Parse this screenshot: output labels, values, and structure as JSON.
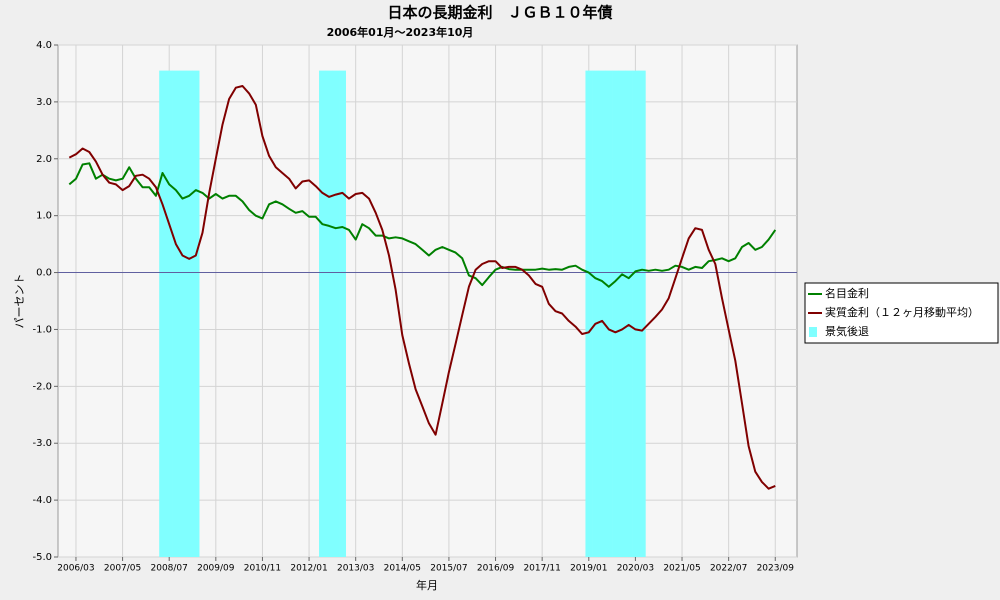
{
  "chart_data": {
    "type": "line",
    "title": "日本の長期金利　ＪＧＢ１０年債",
    "subtitle": "2006年01月～2023年10月",
    "x_label": "年月",
    "y_label": "パーセント",
    "categories": [
      null,
      "2006/03",
      null,
      null,
      null,
      null,
      null,
      null,
      "2007/05",
      null,
      null,
      null,
      null,
      null,
      null,
      "2008/07",
      null,
      null,
      null,
      null,
      null,
      null,
      "2009/09",
      null,
      null,
      null,
      null,
      null,
      null,
      "2010/11",
      null,
      null,
      null,
      null,
      null,
      null,
      "2012/01",
      null,
      null,
      null,
      null,
      null,
      null,
      "2013/03",
      null,
      null,
      null,
      null,
      null,
      null,
      "2014/05",
      null,
      null,
      null,
      null,
      null,
      null,
      "2015/07",
      null,
      null,
      null,
      null,
      null,
      null,
      "2016/09",
      null,
      null,
      null,
      null,
      null,
      null,
      "2017/11",
      null,
      null,
      null,
      null,
      null,
      null,
      "2019/01",
      null,
      null,
      null,
      null,
      null,
      null,
      "2020/03",
      null,
      null,
      null,
      null,
      null,
      null,
      "2021/05",
      null,
      null,
      null,
      null,
      null,
      null,
      "2022/07",
      null,
      null,
      null,
      null,
      null,
      null,
      "2023/09"
    ],
    "series": [
      {
        "name": "名目金利",
        "color": "#008000",
        "kind": "line",
        "values": [
          1.55,
          1.65,
          1.9,
          1.92,
          1.65,
          1.72,
          1.65,
          1.62,
          1.65,
          1.85,
          1.65,
          1.5,
          1.5,
          1.35,
          1.75,
          1.55,
          1.45,
          1.3,
          1.35,
          1.45,
          1.4,
          1.3,
          1.38,
          1.3,
          1.35,
          1.35,
          1.25,
          1.1,
          1.0,
          0.95,
          1.2,
          1.25,
          1.2,
          1.12,
          1.05,
          1.08,
          0.98,
          0.98,
          0.85,
          0.82,
          0.78,
          0.8,
          0.75,
          0.58,
          0.85,
          0.78,
          0.65,
          0.65,
          0.6,
          0.62,
          0.6,
          0.55,
          0.5,
          0.4,
          0.3,
          0.4,
          0.45,
          0.4,
          0.35,
          0.25,
          -0.05,
          -0.1,
          -0.22,
          -0.08,
          0.05,
          0.1,
          0.06,
          0.05,
          0.05,
          0.05,
          0.05,
          0.07,
          0.05,
          0.06,
          0.05,
          0.1,
          0.12,
          0.05,
          0.0,
          -0.1,
          -0.15,
          -0.25,
          -0.15,
          -0.03,
          -0.1,
          0.02,
          0.05,
          0.03,
          0.05,
          0.03,
          0.05,
          0.12,
          0.1,
          0.05,
          0.1,
          0.08,
          0.2,
          0.22,
          0.25,
          0.2,
          0.25,
          0.45,
          0.52,
          0.4,
          0.45,
          0.58,
          0.75
        ]
      },
      {
        "name": "実質金利（１２ヶ月移動平均）",
        "color": "#800000",
        "kind": "line",
        "values": [
          2.02,
          2.08,
          2.18,
          2.12,
          1.95,
          1.72,
          1.58,
          1.55,
          1.45,
          1.52,
          1.7,
          1.72,
          1.65,
          1.5,
          1.2,
          0.85,
          0.5,
          0.3,
          0.24,
          0.3,
          0.7,
          1.4,
          2.0,
          2.6,
          3.05,
          3.25,
          3.28,
          3.15,
          2.95,
          2.4,
          2.05,
          1.85,
          1.75,
          1.65,
          1.48,
          1.6,
          1.62,
          1.52,
          1.4,
          1.33,
          1.37,
          1.4,
          1.3,
          1.38,
          1.4,
          1.3,
          1.05,
          0.75,
          0.3,
          -0.3,
          -1.1,
          -1.6,
          -2.05,
          -2.35,
          -2.65,
          -2.85,
          -2.3,
          -1.75,
          -1.25,
          -0.75,
          -0.25,
          0.05,
          0.15,
          0.2,
          0.2,
          0.08,
          0.1,
          0.1,
          0.05,
          -0.05,
          -0.2,
          -0.25,
          -0.55,
          -0.68,
          -0.72,
          -0.85,
          -0.95,
          -1.08,
          -1.05,
          -0.9,
          -0.85,
          -1.0,
          -1.05,
          -1.0,
          -0.92,
          -1.0,
          -1.02,
          -0.9,
          -0.78,
          -0.65,
          -0.45,
          -0.1,
          0.25,
          0.6,
          0.78,
          0.75,
          0.4,
          0.15,
          -0.45,
          -1.0,
          -1.55,
          -2.3,
          -3.05,
          -3.5,
          -3.68,
          -3.8,
          -3.75
        ]
      },
      {
        "name": "景気後退",
        "color": "#80ffff",
        "kind": "bar",
        "values": [
          null,
          null,
          null,
          null,
          null,
          null,
          null,
          null,
          null,
          null,
          null,
          null,
          null,
          null,
          3.55,
          3.55,
          3.55,
          3.55,
          3.55,
          3.55,
          null,
          null,
          null,
          null,
          null,
          null,
          null,
          null,
          null,
          null,
          null,
          null,
          null,
          null,
          null,
          null,
          null,
          null,
          3.55,
          3.55,
          3.55,
          3.55,
          null,
          null,
          null,
          null,
          null,
          null,
          null,
          null,
          null,
          null,
          null,
          null,
          null,
          null,
          null,
          null,
          null,
          null,
          null,
          null,
          null,
          null,
          null,
          null,
          null,
          null,
          null,
          null,
          null,
          null,
          null,
          null,
          null,
          null,
          null,
          null,
          3.55,
          3.55,
          3.55,
          3.55,
          3.55,
          3.55,
          3.55,
          3.55,
          3.55,
          null,
          null,
          null,
          null,
          null,
          null,
          null,
          null,
          null,
          null,
          null,
          null,
          null,
          null,
          null,
          null,
          null,
          null,
          null,
          null
        ]
      }
    ],
    "ylim": [
      -5,
      4
    ],
    "yticks": [
      {
        "value": 4,
        "label": "4.0"
      },
      {
        "value": 3,
        "label": "3.0"
      },
      {
        "value": 2,
        "label": "2.0"
      },
      {
        "value": 1,
        "label": "1.0"
      },
      {
        "value": 0,
        "label": "0.0"
      },
      {
        "value": -1,
        "label": "-1.0"
      },
      {
        "value": -2,
        "label": "-2.0"
      },
      {
        "value": -3,
        "label": "-3.0"
      },
      {
        "value": -4,
        "label": "-4.0"
      },
      {
        "value": -5,
        "label": "-5.0"
      }
    ],
    "grid": true,
    "legend": "right"
  }
}
